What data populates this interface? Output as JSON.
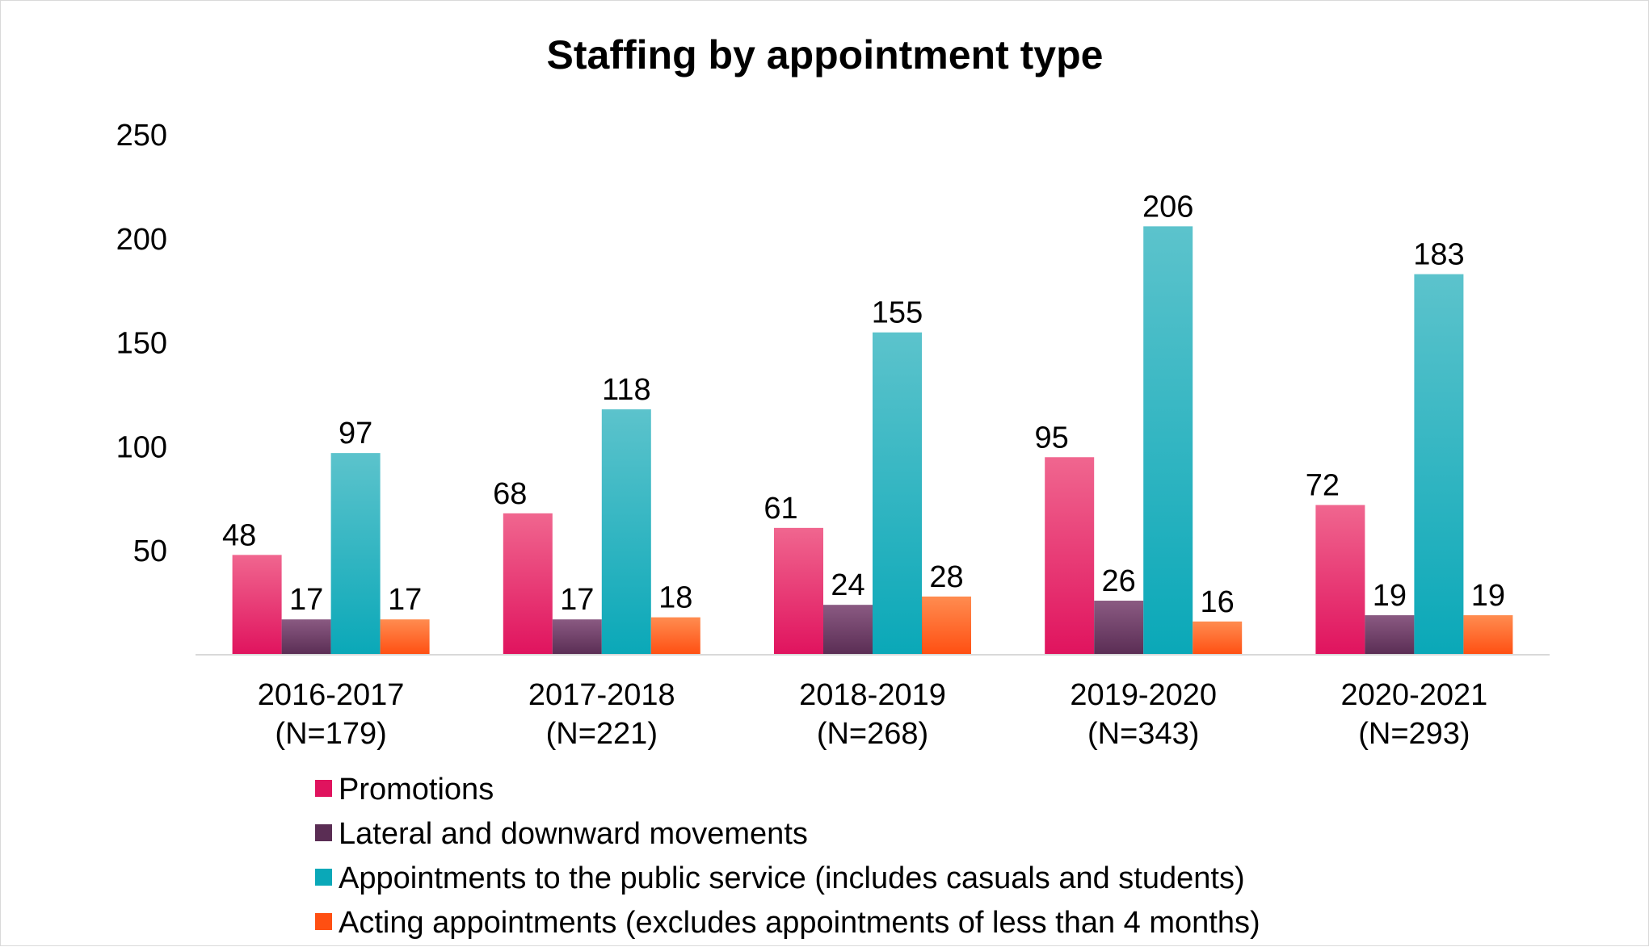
{
  "chart_data": {
    "type": "bar",
    "title": "Staffing by appointment type",
    "xlabel": "",
    "ylabel": "",
    "ylim": [
      0,
      250
    ],
    "yticks": [
      50,
      100,
      150,
      200,
      250
    ],
    "grid": false,
    "legend_position": "bottom",
    "categories": [
      [
        "2016-2017",
        "(N=179)"
      ],
      [
        "2017-2018",
        "(N=221)"
      ],
      [
        "2018-2019",
        "(N=268)"
      ],
      [
        "2019-2020",
        "(N=343)"
      ],
      [
        "2020-2021",
        "(N=293)"
      ]
    ],
    "series": [
      {
        "name": "Promotions",
        "color": "#e0135e",
        "color_light": "#f0668f",
        "values": [
          48,
          68,
          61,
          95,
          72
        ]
      },
      {
        "name": "Lateral and downward movements",
        "color": "#5a2d54",
        "color_light": "#8a5a82",
        "values": [
          17,
          17,
          24,
          26,
          19
        ]
      },
      {
        "name": "Appointments to the public service (includes casuals and students)",
        "color": "#0aa8b8",
        "color_light": "#5cc3cc",
        "values": [
          97,
          118,
          155,
          206,
          183
        ]
      },
      {
        "name": "Acting appointments (excludes appointments of less than 4 months)",
        "color": "#ff4f12",
        "color_light": "#ff8c50",
        "values": [
          17,
          18,
          28,
          16,
          19
        ]
      }
    ]
  }
}
